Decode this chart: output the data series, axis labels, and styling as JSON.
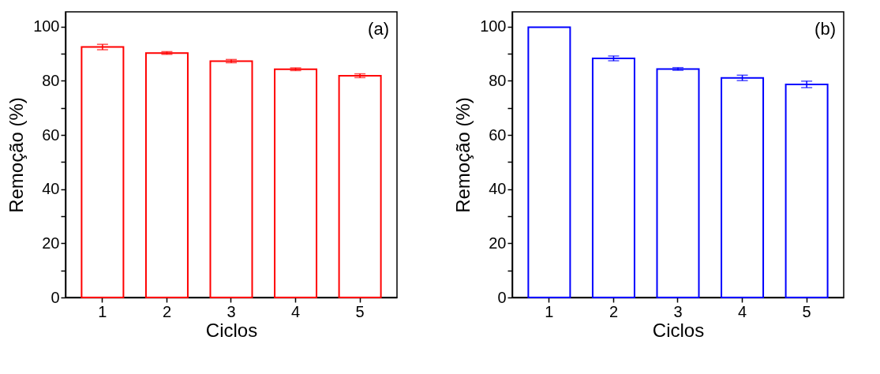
{
  "chart_data": [
    {
      "type": "bar",
      "categories": [
        "1",
        "2",
        "3",
        "4",
        "5"
      ],
      "series": [
        {
          "color": "#ff0000",
          "values": [
            92.5,
            90.3,
            87.3,
            84.3,
            81.9
          ],
          "errors": [
            1.0,
            0.5,
            0.6,
            0.5,
            0.7
          ]
        }
      ],
      "xlabel": "Ciclos",
      "ylabel": "Remoção (%)",
      "ylim": [
        0,
        105.5
      ],
      "yticks": [
        0,
        {
          "value": 10,
          "label": null
        },
        20,
        {
          "value": 30,
          "label": null
        },
        40,
        {
          "value": 50,
          "label": null
        },
        60,
        {
          "value": 70,
          "label": null
        },
        80,
        {
          "value": 90,
          "label": null
        },
        100
      ],
      "annotations": [
        "(a)"
      ],
      "grid": false,
      "legend": false
    },
    {
      "type": "bar",
      "categories": [
        "1",
        "2",
        "3",
        "4",
        "5"
      ],
      "series": [
        {
          "color": "#0000ff",
          "values": [
            99.8,
            88.3,
            84.4,
            81.1,
            78.7
          ],
          "errors": [
            null,
            0.9,
            0.5,
            1.0,
            1.2
          ]
        }
      ],
      "xlabel": "Ciclos",
      "ylabel": "Remoção (%)",
      "ylim": [
        0,
        105.5
      ],
      "yticks": [
        0,
        {
          "value": 10,
          "label": null
        },
        20,
        {
          "value": 30,
          "label": null
        },
        40,
        {
          "value": 50,
          "label": null
        },
        60,
        {
          "value": 70,
          "label": null
        },
        80,
        {
          "value": 90,
          "label": null
        },
        100
      ],
      "annotations": [
        "(b)"
      ],
      "grid": false,
      "legend": false
    }
  ]
}
